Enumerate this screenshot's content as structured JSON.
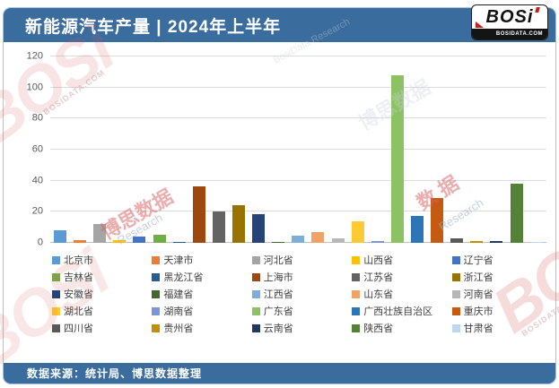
{
  "header": {
    "title": "新能源汽车产量 | 2024年上半年",
    "logo": {
      "brand": "BOSi",
      "domain": "BOSIDATA.COM"
    }
  },
  "footer": {
    "source_label": "数据来源：统计局、博思数据整理"
  },
  "colors": {
    "banner_bg": "#3A6C9E",
    "card_border": "#AEC3D6",
    "gridline": "#DCDCDC",
    "baseline": "#C0C0C0",
    "axis_text": "#595959",
    "legend_text": "#404040",
    "watermark_red": "#D96060",
    "watermark_gray": "#B9C4CE"
  },
  "chart_data": {
    "type": "bar",
    "title": "新能源汽车产量 | 2024年上半年",
    "xlabel": "",
    "ylabel": "",
    "ylim": [
      0,
      120
    ],
    "yticks": [
      0,
      20,
      40,
      60,
      80,
      100,
      120
    ],
    "grid": true,
    "legend_position": "bottom",
    "categories": [
      "北京市",
      "天津市",
      "河北省",
      "山西省",
      "辽宁省",
      "吉林省",
      "黑龙江省",
      "上海市",
      "江苏省",
      "浙江省",
      "安徽省",
      "福建省",
      "江西省",
      "山东省",
      "河南省",
      "湖北省",
      "湖南省",
      "广东省",
      "广西壮族自治区",
      "重庆市",
      "四川省",
      "贵州省",
      "云南省",
      "陕西省",
      "甘肃省"
    ],
    "values": [
      8,
      2,
      12,
      2,
      4,
      5,
      0.5,
      36.5,
      20,
      24,
      18.5,
      0.5,
      4.5,
      7,
      3,
      14,
      1,
      108,
      17.5,
      29,
      3,
      1,
      1,
      38,
      0.5
    ],
    "bar_colors": [
      "#5B9BD5",
      "#ED7D31",
      "#A5A5A5",
      "#FFC000",
      "#4472C4",
      "#70AD47",
      "#255E91",
      "#9E480E",
      "#636363",
      "#997300",
      "#264478",
      "#43682B",
      "#7CAEDC",
      "#F1A367",
      "#B7B7B7",
      "#FFC933",
      "#7C96D6",
      "#8CC164",
      "#2E75B6",
      "#C55A11",
      "#595959",
      "#BF9000",
      "#203864",
      "#538135",
      "#BDD7EE"
    ]
  },
  "watermarks": {
    "brand": "BOSi",
    "domain": "BOSIDATA.COM",
    "cn": "博思数据",
    "cn2": "数 据",
    "research": "Research",
    "research2": "BosiData Research"
  }
}
